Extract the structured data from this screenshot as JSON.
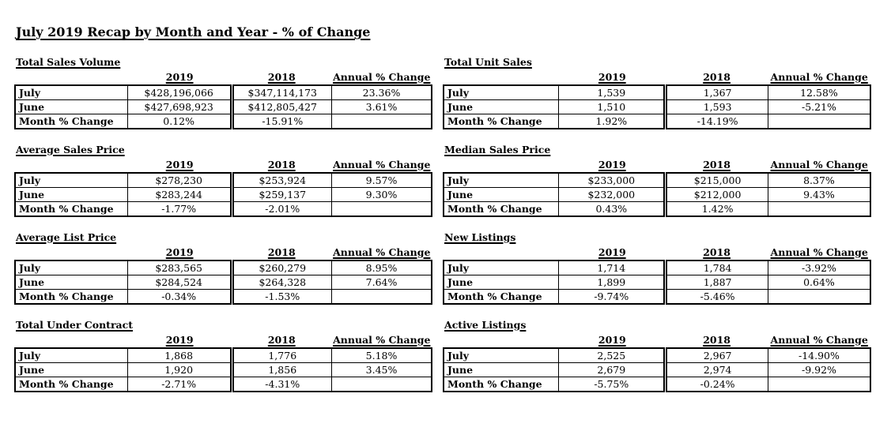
{
  "page_title": "July 2019 Recap by Month and Year - % of Change",
  "columns": [
    "2019",
    "2018",
    "Annual % Change"
  ],
  "row_labels": [
    "July",
    "June",
    "Month % Change"
  ],
  "colors": {
    "text": "#000000",
    "background": "#ffffff",
    "border": "#000000"
  },
  "sections": [
    {
      "title": "Total Sales Volume",
      "rows": [
        [
          "$428,196,066",
          "$347,114,173",
          "23.36%"
        ],
        [
          "$427,698,923",
          "$412,805,427",
          "3.61%"
        ],
        [
          "0.12%",
          "-15.91%",
          ""
        ]
      ]
    },
    {
      "title": "Total Unit Sales",
      "rows": [
        [
          "1,539",
          "1,367",
          "12.58%"
        ],
        [
          "1,510",
          "1,593",
          "-5.21%"
        ],
        [
          "1.92%",
          "-14.19%",
          ""
        ]
      ]
    },
    {
      "title": "Average Sales Price",
      "rows": [
        [
          "$278,230",
          "$253,924",
          "9.57%"
        ],
        [
          "$283,244",
          "$259,137",
          "9.30%"
        ],
        [
          "-1.77%",
          "-2.01%",
          ""
        ]
      ]
    },
    {
      "title": "Median Sales Price",
      "rows": [
        [
          "$233,000",
          "$215,000",
          "8.37%"
        ],
        [
          "$232,000",
          "$212,000",
          "9.43%"
        ],
        [
          "0.43%",
          "1.42%",
          ""
        ]
      ]
    },
    {
      "title": "Average List Price",
      "rows": [
        [
          "$283,565",
          "$260,279",
          "8.95%"
        ],
        [
          "$284,524",
          "$264,328",
          "7.64%"
        ],
        [
          "-0.34%",
          "-1.53%",
          ""
        ]
      ]
    },
    {
      "title": "New Listings",
      "rows": [
        [
          "1,714",
          "1,784",
          "-3.92%"
        ],
        [
          "1,899",
          "1,887",
          "0.64%"
        ],
        [
          "-9.74%",
          "-5.46%",
          ""
        ]
      ]
    },
    {
      "title": "Total Under Contract",
      "rows": [
        [
          "1,868",
          "1,776",
          "5.18%"
        ],
        [
          "1,920",
          "1,856",
          "3.45%"
        ],
        [
          "-2.71%",
          "-4.31%",
          ""
        ]
      ]
    },
    {
      "title": "Active Listings",
      "rows": [
        [
          "2,525",
          "2,967",
          "-14.90%"
        ],
        [
          "2,679",
          "2,974",
          "-9.92%"
        ],
        [
          "-5.75%",
          "-0.24%",
          ""
        ]
      ]
    }
  ]
}
